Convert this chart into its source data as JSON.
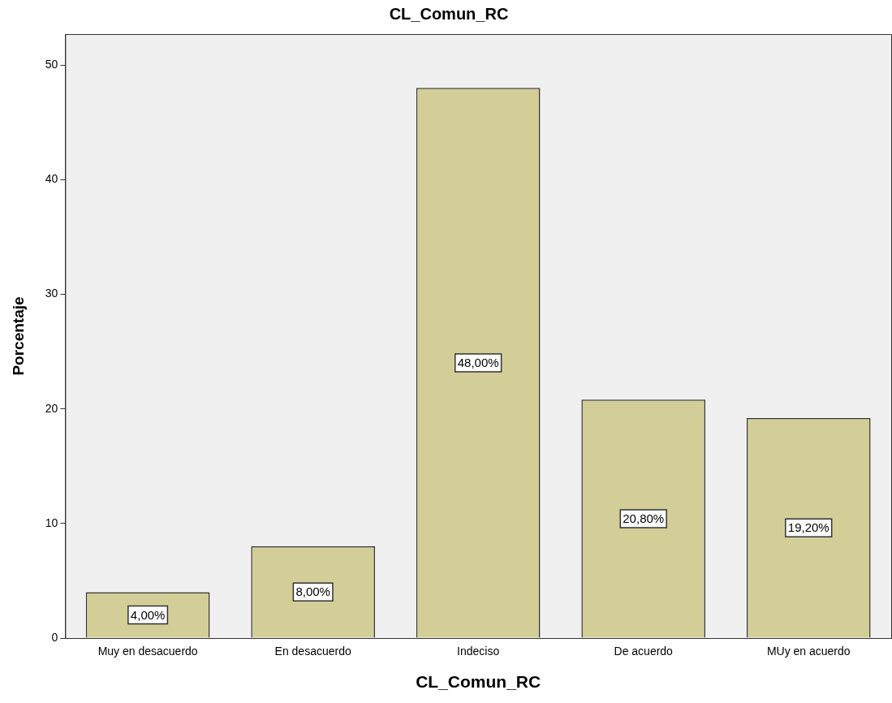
{
  "chart_data": {
    "type": "bar",
    "title": "CL_Comun_RC",
    "xlabel": "CL_Comun_RC",
    "ylabel": "Porcentaje",
    "categories": [
      "Muy en desacuerdo",
      "En desacuerdo",
      "Indeciso",
      "De acuerdo",
      "MUy en acuerdo"
    ],
    "values": [
      4,
      8,
      48,
      20.8,
      19.2
    ],
    "value_labels": [
      "4,00%",
      "8,00%",
      "48,00%",
      "20,80%",
      "19,20%"
    ],
    "color": "#d3ce97",
    "ylim": [
      0,
      52.7
    ],
    "yticks": [
      0,
      10,
      20,
      30,
      40,
      50
    ],
    "grid": false,
    "legend": false
  }
}
